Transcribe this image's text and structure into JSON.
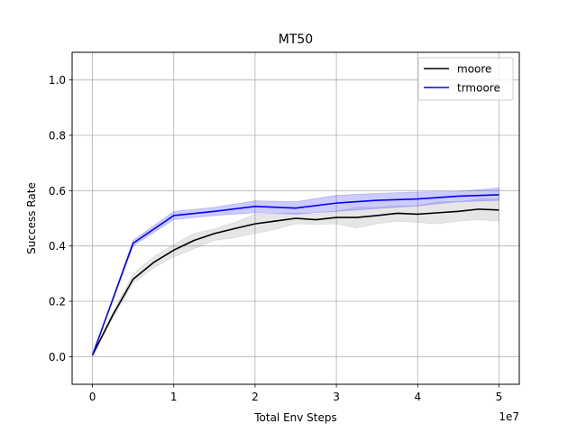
{
  "chart_data": {
    "type": "line",
    "title": "MT50",
    "xlabel": "Total Env Steps",
    "ylabel": "Success Rate",
    "x_offset_text": "1e7",
    "xlim": [
      -2500000,
      52500000
    ],
    "ylim": [
      -0.1,
      1.1
    ],
    "x_ticks": [
      0,
      10000000,
      20000000,
      30000000,
      40000000,
      50000000
    ],
    "x_tick_labels": [
      "0",
      "1",
      "2",
      "3",
      "4",
      "5"
    ],
    "y_ticks": [
      0.0,
      0.2,
      0.4,
      0.6,
      0.8,
      1.0
    ],
    "y_tick_labels": [
      "0.0",
      "0.2",
      "0.4",
      "0.6",
      "0.8",
      "1.0"
    ],
    "grid": true,
    "legend_position": "top-right",
    "series": [
      {
        "name": "moore",
        "color": "#000000",
        "band_color": "#808080",
        "x": [
          0,
          2500000,
          5000000,
          7500000,
          10000000,
          12500000,
          15000000,
          17500000,
          20000000,
          22500000,
          25000000,
          27500000,
          30000000,
          32500000,
          35000000,
          37500000,
          40000000,
          42500000,
          45000000,
          47500000,
          50000000
        ],
        "y": [
          0.005,
          0.15,
          0.28,
          0.34,
          0.385,
          0.42,
          0.445,
          0.463,
          0.48,
          0.49,
          0.5,
          0.495,
          0.503,
          0.503,
          0.51,
          0.518,
          0.515,
          0.52,
          0.525,
          0.533,
          0.53
        ],
        "upper": [
          0.005,
          0.16,
          0.3,
          0.36,
          0.405,
          0.445,
          0.462,
          0.485,
          0.515,
          0.515,
          0.52,
          0.515,
          0.525,
          0.54,
          0.54,
          0.545,
          0.545,
          0.56,
          0.56,
          0.57,
          0.57
        ],
        "lower": [
          0.005,
          0.14,
          0.265,
          0.32,
          0.36,
          0.39,
          0.42,
          0.43,
          0.445,
          0.46,
          0.48,
          0.478,
          0.48,
          0.465,
          0.48,
          0.49,
          0.485,
          0.48,
          0.49,
          0.495,
          0.49
        ]
      },
      {
        "name": "trmoore",
        "color": "#0000ff",
        "band_color": "#0000ff",
        "x": [
          0,
          5000000,
          10000000,
          15000000,
          20000000,
          25000000,
          30000000,
          35000000,
          40000000,
          45000000,
          50000000
        ],
        "y": [
          0.005,
          0.41,
          0.51,
          0.525,
          0.543,
          0.537,
          0.555,
          0.565,
          0.57,
          0.58,
          0.585
        ],
        "upper": [
          0.005,
          0.42,
          0.525,
          0.54,
          0.563,
          0.56,
          0.583,
          0.59,
          0.595,
          0.597,
          0.61
        ],
        "lower": [
          0.005,
          0.4,
          0.495,
          0.51,
          0.52,
          0.515,
          0.525,
          0.535,
          0.545,
          0.56,
          0.565
        ]
      }
    ]
  }
}
